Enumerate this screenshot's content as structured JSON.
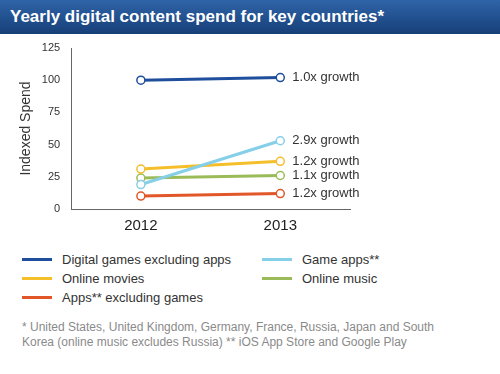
{
  "chart_data": {
    "type": "line",
    "title": "Yearly digital content spend for key countries*",
    "y_label": "Indexed Spend",
    "categories": [
      "2012",
      "2013"
    ],
    "series": [
      {
        "name": "Digital games excluding apps",
        "color": "#1f4e9c",
        "values": [
          100,
          102
        ],
        "annotation": "1.0x growth"
      },
      {
        "name": "Game apps**",
        "color": "#86cfe8",
        "values": [
          19,
          53
        ],
        "annotation": "2.9x growth"
      },
      {
        "name": "Online movies",
        "color": "#f4bf2a",
        "values": [
          31,
          37
        ],
        "annotation": "1.2x growth"
      },
      {
        "name": "Online music",
        "color": "#9bbb59",
        "values": [
          24,
          26
        ],
        "annotation": "1.1x growth"
      },
      {
        "name": "Apps** excluding games",
        "color": "#e2572a",
        "values": [
          10,
          12
        ],
        "annotation": "1.2x growth"
      }
    ],
    "notes": [
      "* United States, United Kingdom, Germany, France, Russia, Japan and South Korea (online music excludes Russia) ** iOS App Store and Google Play"
    ],
    "ylim": [
      0,
      125
    ],
    "yticks": [
      0,
      25,
      50,
      75,
      100,
      125
    ],
    "grid": false,
    "legend": "bottom",
    "marker": "circle"
  }
}
